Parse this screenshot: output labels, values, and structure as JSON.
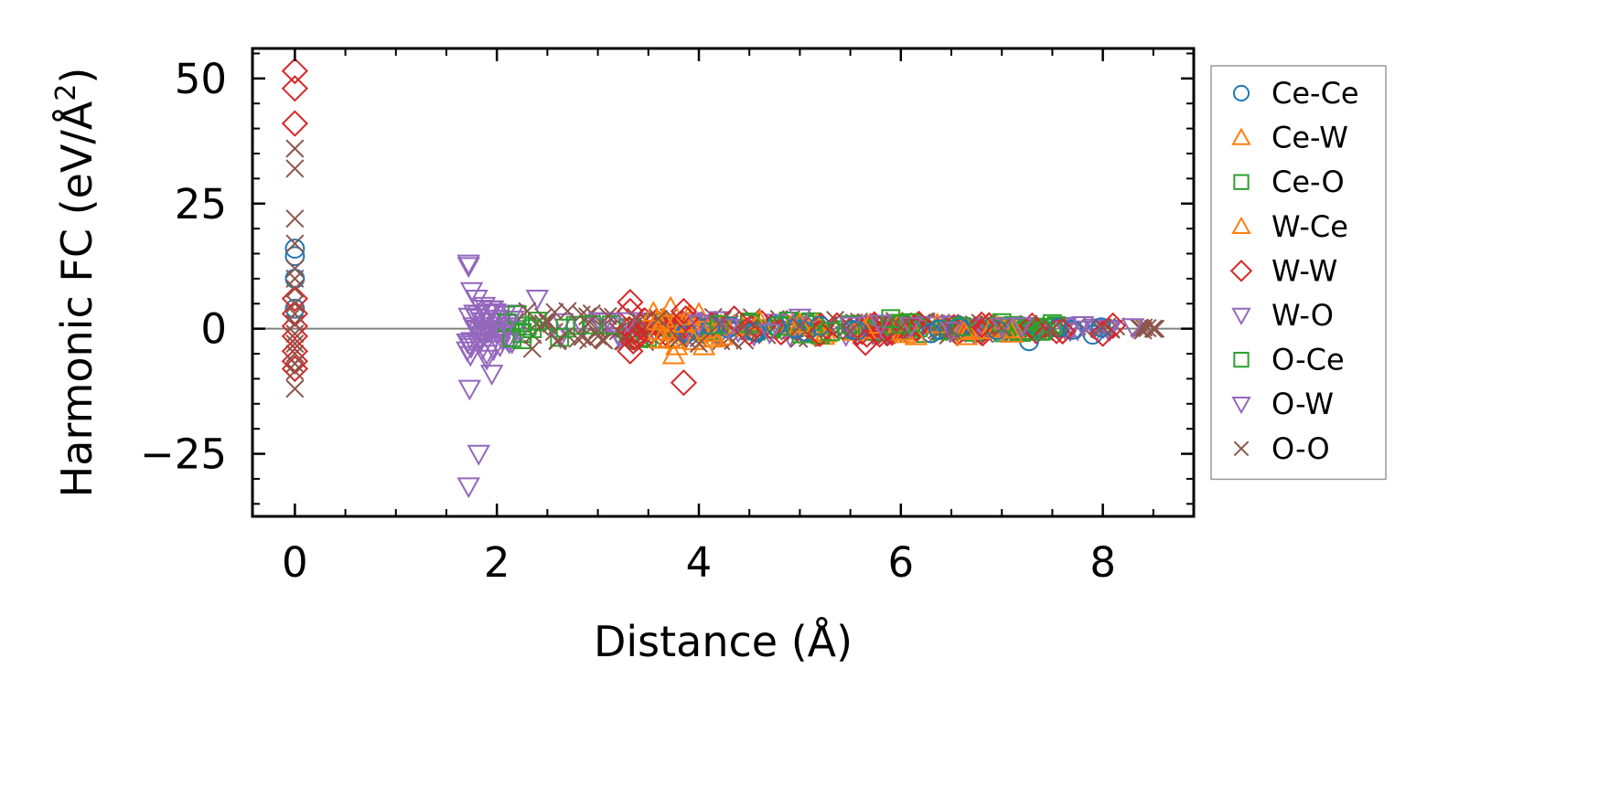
{
  "chart_data": {
    "type": "scatter",
    "xlabel": "Distance (Å)",
    "ylabel": "Harmonic FC (eV/Å²)",
    "ylabel_main": "Harmonic FC (eV/Å",
    "ylabel_sup": "2",
    "ylabel_close": ")",
    "xlim": [
      -0.42,
      8.9
    ],
    "ylim": [
      -37.5,
      56
    ],
    "xticks": [
      0,
      2,
      4,
      6,
      8
    ],
    "xtick_labels": [
      "0",
      "2",
      "4",
      "6",
      "8"
    ],
    "yticks": [
      -25,
      0,
      25,
      50
    ],
    "ytick_labels": [
      "−25",
      "0",
      "25",
      "50"
    ],
    "zero_line": true,
    "grid": false,
    "legend_position": "right, outside plot",
    "series": [
      {
        "name": "Ce-Ce",
        "marker": "circle",
        "color": "#1f77b4",
        "points": [
          [
            0,
            16
          ],
          [
            0,
            14.5
          ],
          [
            0,
            10
          ],
          [
            0,
            4
          ],
          [
            7.27,
            -2.5
          ],
          [
            7.9,
            -1.2
          ],
          [
            6.3,
            -0.9
          ],
          [
            5.2,
            0.6
          ]
        ]
      },
      {
        "name": "Ce-W",
        "marker": "triangle-up",
        "color": "#ff7f0e",
        "points": [
          [
            3.55,
            3.2
          ],
          [
            3.58,
            1.5
          ],
          [
            3.6,
            -0.5
          ],
          [
            3.62,
            -2.2
          ],
          [
            3.72,
            4.2
          ],
          [
            3.75,
            -5.3
          ],
          [
            3.78,
            -3.5
          ],
          [
            3.9,
            2.5
          ],
          [
            3.95,
            -2.5
          ],
          [
            4.0,
            3.0
          ],
          [
            6.15,
            -1.5
          ],
          [
            6.65,
            -1.5
          ],
          [
            7.1,
            -1.0
          ]
        ]
      },
      {
        "name": "Ce-O",
        "marker": "square",
        "color": "#2ca02c",
        "points": [
          [
            2.2,
            2.8
          ],
          [
            2.25,
            -2.2
          ],
          [
            2.3,
            0.5
          ],
          [
            2.4,
            1.5
          ],
          [
            4.5,
            1.0
          ],
          [
            5.2,
            -1.2
          ],
          [
            5.5,
            0.8
          ],
          [
            5.9,
            2.0
          ],
          [
            6.1,
            1.2
          ],
          [
            7.0,
            1.2
          ],
          [
            7.5,
            1.0
          ]
        ]
      },
      {
        "name": "W-Ce",
        "marker": "triangle-up",
        "color": "#ff7f0e",
        "points": [
          [
            3.65,
            2.0
          ],
          [
            3.7,
            -2.0
          ],
          [
            3.85,
            1.0
          ],
          [
            4.05,
            -3.5
          ],
          [
            5.0,
            1.0
          ]
        ]
      },
      {
        "name": "W-W",
        "marker": "diamond",
        "color": "#d62728",
        "points": [
          [
            0,
            51.5
          ],
          [
            0,
            48
          ],
          [
            0,
            41
          ],
          [
            0,
            6
          ],
          [
            0,
            3
          ],
          [
            0,
            0.5
          ],
          [
            0,
            -1.5
          ],
          [
            0,
            -4.5
          ],
          [
            0,
            -6.5
          ],
          [
            0,
            -8
          ],
          [
            3.32,
            5.3
          ],
          [
            3.32,
            3.5
          ],
          [
            3.35,
            -2.5
          ],
          [
            3.32,
            -4.5
          ],
          [
            3.85,
            3.5
          ],
          [
            3.87,
            2.0
          ],
          [
            3.85,
            -10.8
          ],
          [
            4.35,
            2.0
          ],
          [
            4.5,
            -0.8
          ],
          [
            5.65,
            -2.8
          ],
          [
            5.2,
            -1.0
          ],
          [
            6.8,
            0.8
          ],
          [
            7.3,
            0.6
          ],
          [
            7.6,
            -0.5
          ],
          [
            8.0,
            -1.0
          ],
          [
            8.1,
            0.6
          ]
        ]
      },
      {
        "name": "W-O",
        "marker": "triangle-down",
        "color": "#9467bd",
        "points": [
          [
            1.72,
            13
          ],
          [
            1.72,
            12.5
          ],
          [
            1.75,
            7.5
          ],
          [
            1.73,
            -12
          ],
          [
            1.72,
            -31.5
          ],
          [
            1.82,
            -25
          ],
          [
            1.8,
            6
          ],
          [
            1.85,
            4
          ],
          [
            1.9,
            -6
          ],
          [
            1.95,
            -9
          ],
          [
            2.05,
            -2
          ],
          [
            2.4,
            6
          ],
          [
            5.0,
            2.2
          ],
          [
            5.8,
            1.0
          ],
          [
            6.1,
            0.5
          ],
          [
            7.2,
            0.5
          ],
          [
            7.8,
            0.7
          ],
          [
            8.3,
            0.3
          ]
        ]
      },
      {
        "name": "O-Ce",
        "marker": "square",
        "color": "#2ca02c",
        "points": [
          [
            2.1,
            1.2
          ],
          [
            2.15,
            -1.8
          ],
          [
            2.35,
            0.0
          ],
          [
            4.2,
            0.8
          ],
          [
            4.8,
            0.5
          ],
          [
            5.3,
            -0.6
          ],
          [
            6.0,
            0.9
          ],
          [
            6.6,
            0.4
          ],
          [
            7.4,
            -0.4
          ]
        ]
      },
      {
        "name": "O-W",
        "marker": "triangle-down",
        "color": "#9467bd",
        "points": [
          [
            1.78,
            3
          ],
          [
            1.8,
            0
          ],
          [
            1.82,
            -3
          ],
          [
            1.85,
            1.5
          ],
          [
            1.9,
            -5
          ],
          [
            2.0,
            2
          ],
          [
            2.0,
            -1
          ],
          [
            2.1,
            0.5
          ],
          [
            3.3,
            1.5
          ],
          [
            4.0,
            1.0
          ],
          [
            4.3,
            0.2
          ],
          [
            4.7,
            -0.8
          ],
          [
            5.5,
            0.6
          ],
          [
            6.5,
            -0.4
          ],
          [
            7.0,
            0.4
          ]
        ]
      },
      {
        "name": "O-O",
        "marker": "x",
        "color": "#8c564b",
        "points": [
          [
            0,
            36
          ],
          [
            0,
            32
          ],
          [
            0,
            22
          ],
          [
            0,
            17
          ],
          [
            0,
            12
          ],
          [
            0,
            10
          ],
          [
            0,
            8
          ],
          [
            0,
            5
          ],
          [
            0,
            3
          ],
          [
            0,
            1
          ],
          [
            0,
            -1
          ],
          [
            0,
            -3
          ],
          [
            0,
            -5
          ],
          [
            0,
            -7
          ],
          [
            0,
            -8.5
          ],
          [
            0,
            -12
          ],
          [
            2.3,
            3.5
          ],
          [
            2.35,
            -4
          ],
          [
            2.5,
            1.5
          ],
          [
            2.6,
            -2.5
          ],
          [
            2.7,
            3.5
          ],
          [
            2.8,
            -2
          ],
          [
            2.9,
            1
          ],
          [
            3.0,
            -1.5
          ],
          [
            3.1,
            2.5
          ],
          [
            3.2,
            -0.5
          ],
          [
            3.4,
            1.5
          ],
          [
            3.6,
            2
          ],
          [
            3.8,
            -2
          ],
          [
            4.0,
            -3
          ],
          [
            4.2,
            1
          ],
          [
            4.5,
            -0.5
          ],
          [
            5.0,
            0.5
          ],
          [
            5.5,
            -0.5
          ],
          [
            6.0,
            0.3
          ],
          [
            6.5,
            -0.3
          ],
          [
            7.0,
            0.2
          ],
          [
            7.5,
            -0.2
          ],
          [
            8.0,
            0.2
          ],
          [
            8.5,
            0.0
          ]
        ]
      }
    ],
    "bands": [
      {
        "series": "O-O",
        "x_from": 2.3,
        "x_to": 8.55,
        "amp_start": 3.5,
        "amp_end": 0.3,
        "count": 180
      },
      {
        "series": "W-O",
        "x_from": 1.7,
        "x_to": 2.2,
        "amp_start": 6,
        "amp_end": 3,
        "count": 40
      },
      {
        "series": "O-W",
        "x_from": 2.2,
        "x_to": 8.3,
        "amp_start": 2.5,
        "amp_end": 0.3,
        "count": 70
      },
      {
        "series": "Ce-O",
        "x_from": 2.2,
        "x_to": 7.6,
        "amp_start": 2.5,
        "amp_end": 0.6,
        "count": 60
      },
      {
        "series": "W-W",
        "x_from": 3.3,
        "x_to": 8.1,
        "amp_start": 2.0,
        "amp_end": 0.5,
        "count": 45
      },
      {
        "series": "Ce-W",
        "x_from": 3.5,
        "x_to": 7.2,
        "amp_start": 2.5,
        "amp_end": 0.5,
        "count": 35
      },
      {
        "series": "Ce-Ce",
        "x_from": 3.8,
        "x_to": 8.0,
        "amp_start": 1.0,
        "amp_end": 0.5,
        "count": 20
      }
    ]
  }
}
